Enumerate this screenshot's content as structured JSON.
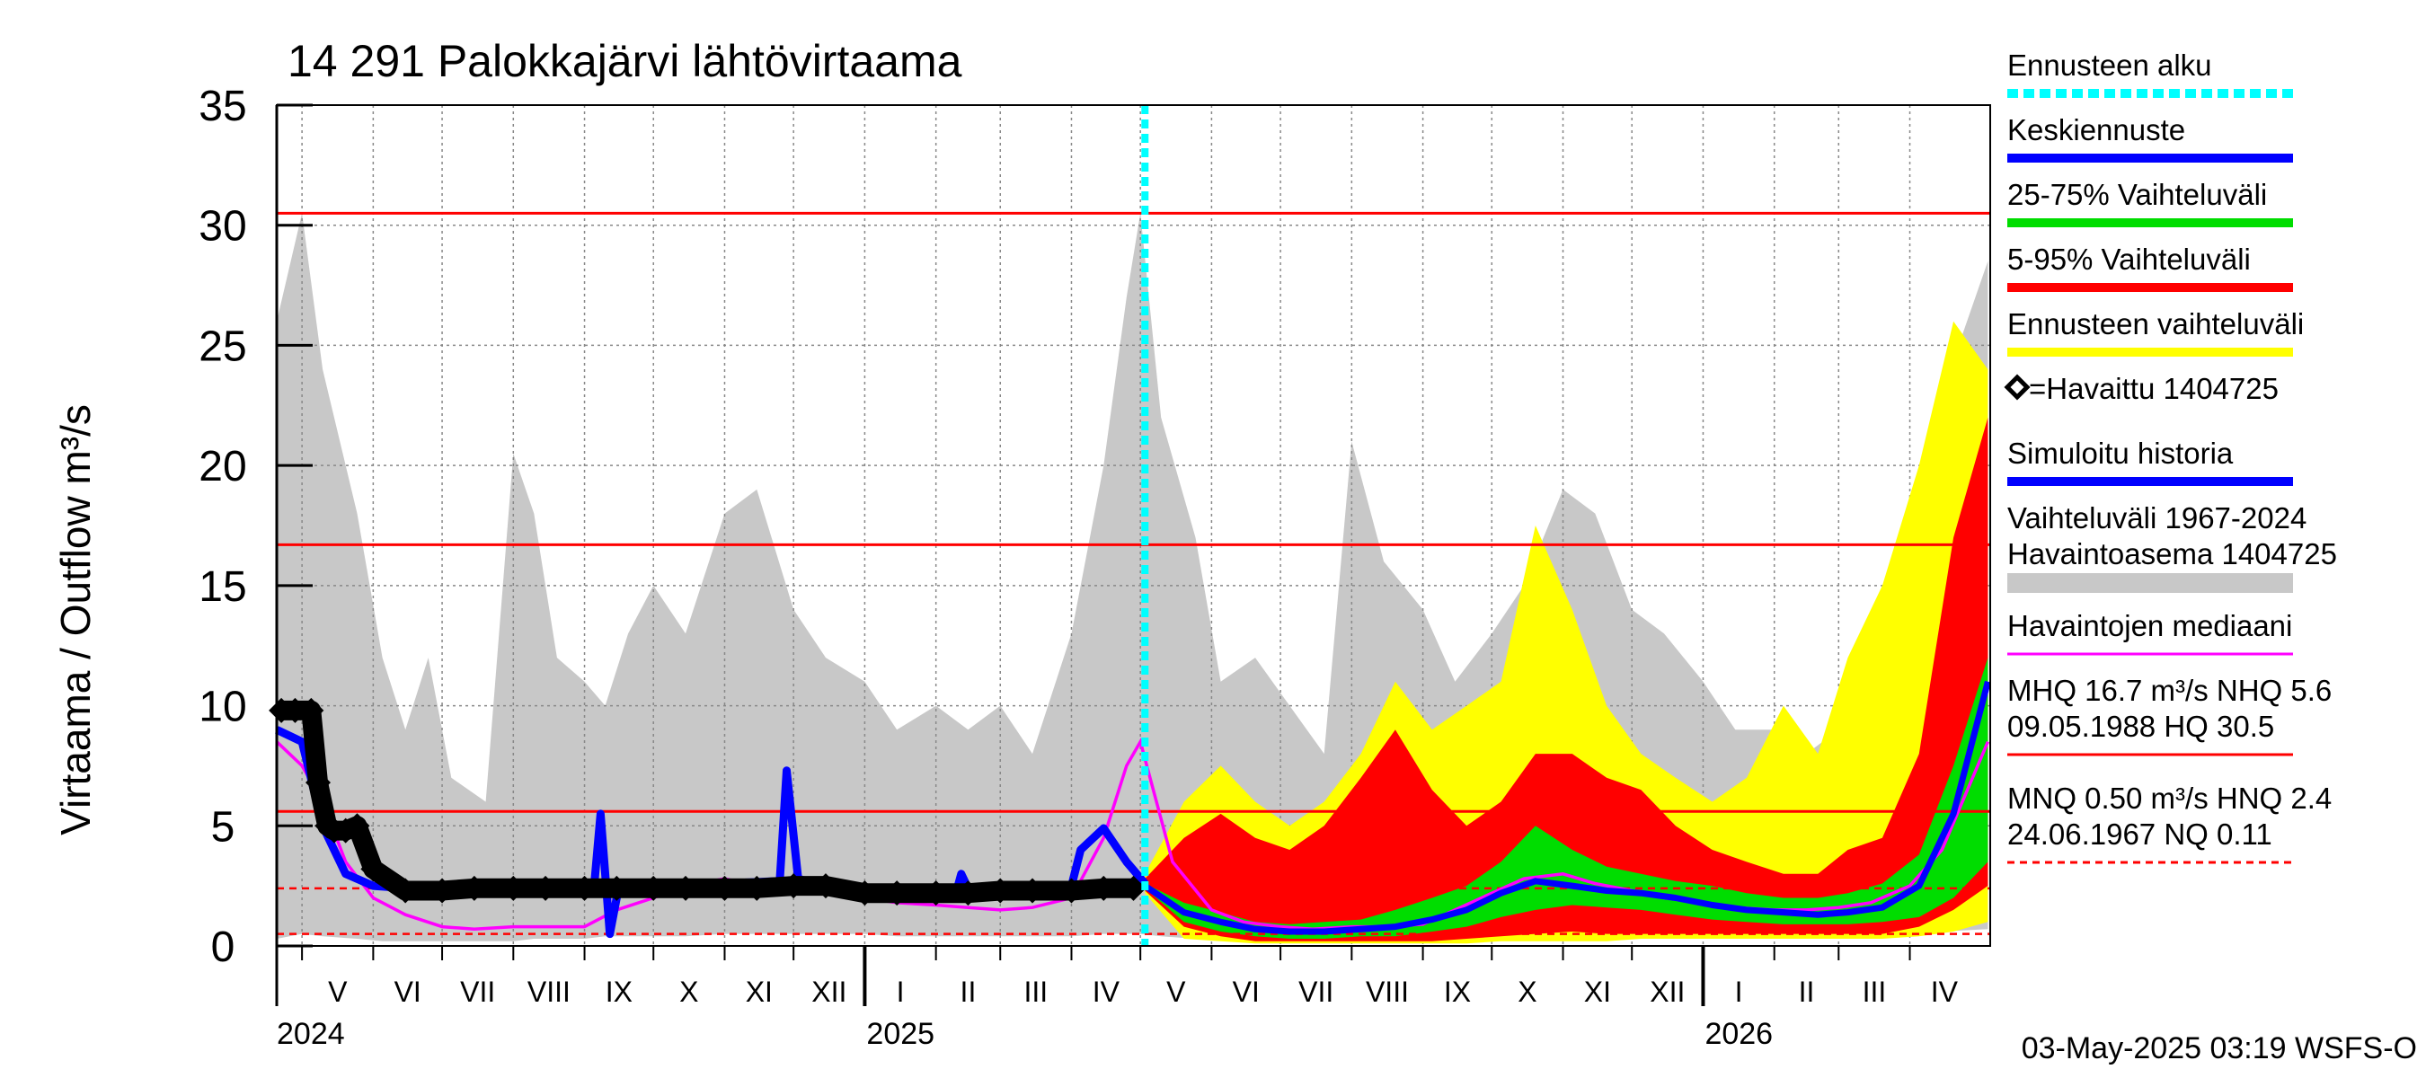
{
  "chart_data": {
    "type": "area",
    "title": "14 291 Palokkajärvi lähtövirtaama",
    "ylabel": "Virtaama / Outflow    m³/s",
    "ylim": [
      0,
      35
    ],
    "yticks": [
      0,
      5,
      10,
      15,
      20,
      25,
      30,
      35
    ],
    "xlim": [
      "2024-04-20",
      "2026-05-06"
    ],
    "grid": true,
    "legend_position": "right",
    "forecast_start": "2025-05-03",
    "timestamp": "03-May-2025 03:19 WSFS-O",
    "months": [
      {
        "label": "V",
        "start": "2024-05-01",
        "end": "2024-06-01"
      },
      {
        "label": "VI",
        "start": "2024-06-01",
        "end": "2024-07-01"
      },
      {
        "label": "VII",
        "start": "2024-07-01",
        "end": "2024-08-01"
      },
      {
        "label": "VIII",
        "start": "2024-08-01",
        "end": "2024-09-01"
      },
      {
        "label": "IX",
        "start": "2024-09-01",
        "end": "2024-10-01"
      },
      {
        "label": "X",
        "start": "2024-10-01",
        "end": "2024-11-01"
      },
      {
        "label": "XI",
        "start": "2024-11-01",
        "end": "2024-12-01"
      },
      {
        "label": "XII",
        "start": "2024-12-01",
        "end": "2025-01-01"
      },
      {
        "label": "I",
        "start": "2025-01-01",
        "end": "2025-02-01"
      },
      {
        "label": "II",
        "start": "2025-02-01",
        "end": "2025-03-01"
      },
      {
        "label": "III",
        "start": "2025-03-01",
        "end": "2025-04-01"
      },
      {
        "label": "IV",
        "start": "2025-04-01",
        "end": "2025-05-01"
      },
      {
        "label": "V",
        "start": "2025-05-01",
        "end": "2025-06-01"
      },
      {
        "label": "VI",
        "start": "2025-06-01",
        "end": "2025-07-01"
      },
      {
        "label": "VII",
        "start": "2025-07-01",
        "end": "2025-08-01"
      },
      {
        "label": "VIII",
        "start": "2025-08-01",
        "end": "2025-09-01"
      },
      {
        "label": "IX",
        "start": "2025-09-01",
        "end": "2025-10-01"
      },
      {
        "label": "X",
        "start": "2025-10-01",
        "end": "2025-11-01"
      },
      {
        "label": "XI",
        "start": "2025-11-01",
        "end": "2025-12-01"
      },
      {
        "label": "XII",
        "start": "2025-12-01",
        "end": "2026-01-01"
      },
      {
        "label": "I",
        "start": "2026-01-01",
        "end": "2026-02-01"
      },
      {
        "label": "II",
        "start": "2026-02-01",
        "end": "2026-03-01"
      },
      {
        "label": "III",
        "start": "2026-03-01",
        "end": "2026-04-01"
      },
      {
        "label": "IV",
        "start": "2026-04-01",
        "end": "2026-05-01"
      }
    ],
    "years": [
      {
        "label": "2024",
        "date": "2024-04-20"
      },
      {
        "label": "2025",
        "date": "2025-01-01"
      },
      {
        "label": "2026",
        "date": "2026-01-01"
      }
    ],
    "reference_lines": [
      {
        "name": "HQ",
        "value": 30.5,
        "style": "solid"
      },
      {
        "name": "MHQ",
        "value": 16.7,
        "style": "solid"
      },
      {
        "name": "NHQ",
        "value": 5.6,
        "style": "solid"
      },
      {
        "name": "HNQ",
        "value": 2.4,
        "style": "dashed"
      },
      {
        "name": "MNQ",
        "value": 0.5,
        "style": "dashed"
      }
    ],
    "series": [
      {
        "name": "Vaihteluväli 1967-2024",
        "role": "historical_range",
        "color": "#c8c8c8",
        "x": [
          "2024-04-20",
          "2024-05-01",
          "2024-05-10",
          "2024-05-25",
          "2024-06-05",
          "2024-06-15",
          "2024-06-25",
          "2024-07-05",
          "2024-07-20",
          "2024-08-01",
          "2024-08-10",
          "2024-08-20",
          "2024-09-01",
          "2024-09-10",
          "2024-09-20",
          "2024-10-01",
          "2024-10-15",
          "2024-11-01",
          "2024-11-15",
          "2024-12-01",
          "2024-12-15",
          "2025-01-01",
          "2025-01-15",
          "2025-02-01",
          "2025-02-15",
          "2025-03-01",
          "2025-03-15",
          "2025-04-01",
          "2025-04-15",
          "2025-04-25",
          "2025-05-01",
          "2025-05-10",
          "2025-05-25",
          "2025-06-05",
          "2025-06-20",
          "2025-07-05",
          "2025-07-20",
          "2025-08-01",
          "2025-08-15",
          "2025-09-01",
          "2025-09-15",
          "2025-10-01",
          "2025-10-15",
          "2025-11-01",
          "2025-11-15",
          "2025-12-01",
          "2025-12-15",
          "2026-01-01",
          "2026-01-15",
          "2026-02-01",
          "2026-02-15",
          "2026-03-01",
          "2026-03-15",
          "2026-04-01",
          "2026-04-15",
          "2026-05-05"
        ],
        "upper": [
          26,
          30.5,
          24,
          18,
          12,
          9,
          12,
          7,
          6,
          20.5,
          18,
          12,
          11,
          10,
          13,
          15,
          13,
          18,
          19,
          14,
          12,
          11,
          9,
          10,
          9,
          10,
          8,
          13,
          20,
          27,
          30.5,
          22,
          17,
          11,
          12,
          10,
          8,
          21,
          16,
          14,
          11,
          13,
          15,
          19,
          18,
          14,
          13,
          11,
          9,
          9,
          8,
          9,
          10,
          16,
          23,
          28.5
        ],
        "lower": [
          0.3,
          0.5,
          0.4,
          0.3,
          0.2,
          0.2,
          0.2,
          0.2,
          0.2,
          0.2,
          0.3,
          0.3,
          0.3,
          0.4,
          0.4,
          0.4,
          0.4,
          0.5,
          0.5,
          0.5,
          0.5,
          0.5,
          0.4,
          0.4,
          0.4,
          0.4,
          0.4,
          0.4,
          0.5,
          0.5,
          0.5,
          0.4,
          0.3,
          0.3,
          0.2,
          0.2,
          0.2,
          0.2,
          0.2,
          0.3,
          0.3,
          0.3,
          0.4,
          0.4,
          0.4,
          0.4,
          0.4,
          0.4,
          0.4,
          0.4,
          0.4,
          0.4,
          0.4,
          0.5,
          0.6,
          0.7
        ]
      },
      {
        "name": "Ennusteen vaihteluväli",
        "role": "forecast_range",
        "color": "#ffff00",
        "x": [
          "2025-05-03",
          "2025-05-20",
          "2025-06-05",
          "2025-06-20",
          "2025-07-05",
          "2025-07-20",
          "2025-08-05",
          "2025-08-20",
          "2025-09-05",
          "2025-09-20",
          "2025-10-05",
          "2025-10-20",
          "2025-11-05",
          "2025-11-20",
          "2025-12-05",
          "2025-12-20",
          "2026-01-05",
          "2026-01-20",
          "2026-02-05",
          "2026-02-20",
          "2026-03-05",
          "2026-03-20",
          "2026-04-05",
          "2026-04-20",
          "2026-05-05"
        ],
        "upper": [
          3,
          6,
          7.5,
          6,
          5,
          6,
          8,
          11,
          9,
          10,
          11,
          17.5,
          14,
          10,
          8,
          7,
          6,
          7,
          10,
          8,
          12,
          15,
          20,
          26,
          24
        ],
        "lower": [
          2.2,
          0.3,
          0.2,
          0.1,
          0.1,
          0.1,
          0.1,
          0.1,
          0.1,
          0.1,
          0.2,
          0.2,
          0.2,
          0.2,
          0.3,
          0.3,
          0.3,
          0.3,
          0.3,
          0.3,
          0.3,
          0.3,
          0.4,
          0.6,
          1.0
        ]
      },
      {
        "name": "5-95% Vaihteluväli",
        "role": "band_5_95",
        "color": "#ff0000",
        "x": [
          "2025-05-03",
          "2025-05-20",
          "2025-06-05",
          "2025-06-20",
          "2025-07-05",
          "2025-07-20",
          "2025-08-05",
          "2025-08-20",
          "2025-09-05",
          "2025-09-20",
          "2025-10-05",
          "2025-10-20",
          "2025-11-05",
          "2025-11-20",
          "2025-12-05",
          "2025-12-20",
          "2026-01-05",
          "2026-01-20",
          "2026-02-05",
          "2026-02-20",
          "2026-03-05",
          "2026-03-20",
          "2026-04-05",
          "2026-04-20",
          "2026-05-05"
        ],
        "upper": [
          2.8,
          4.5,
          5.5,
          4.5,
          4,
          5,
          7,
          9,
          6.5,
          5,
          6,
          8,
          8,
          7,
          6.5,
          5,
          4,
          3.5,
          3,
          3,
          4,
          4.5,
          8,
          17,
          22
        ],
        "lower": [
          2.3,
          0.8,
          0.4,
          0.2,
          0.2,
          0.2,
          0.2,
          0.2,
          0.2,
          0.3,
          0.4,
          0.5,
          0.6,
          0.5,
          0.5,
          0.5,
          0.5,
          0.5,
          0.5,
          0.5,
          0.5,
          0.5,
          0.8,
          1.5,
          2.5
        ]
      },
      {
        "name": "25-75% Vaihteluväli",
        "role": "band_25_75",
        "color": "#00dd00",
        "x": [
          "2025-05-03",
          "2025-05-20",
          "2025-06-05",
          "2025-06-20",
          "2025-07-05",
          "2025-07-20",
          "2025-08-05",
          "2025-08-20",
          "2025-09-05",
          "2025-09-20",
          "2025-10-05",
          "2025-10-20",
          "2025-11-05",
          "2025-11-20",
          "2025-12-05",
          "2025-12-20",
          "2026-01-05",
          "2026-01-20",
          "2026-02-05",
          "2026-02-20",
          "2026-03-05",
          "2026-03-20",
          "2026-04-05",
          "2026-04-20",
          "2026-05-05"
        ],
        "upper": [
          2.6,
          1.8,
          1.4,
          1.0,
          0.9,
          1.0,
          1.1,
          1.5,
          2.0,
          2.5,
          3.5,
          5.0,
          4.0,
          3.3,
          3.0,
          2.7,
          2.5,
          2.2,
          2.0,
          2.0,
          2.2,
          2.6,
          3.8,
          7.5,
          12.0
        ],
        "lower": [
          2.4,
          1.0,
          0.6,
          0.4,
          0.3,
          0.3,
          0.4,
          0.4,
          0.6,
          0.8,
          1.2,
          1.5,
          1.7,
          1.6,
          1.5,
          1.3,
          1.1,
          1.0,
          0.9,
          0.9,
          0.9,
          1.0,
          1.2,
          2.0,
          3.5
        ]
      },
      {
        "name": "Keskiennuste",
        "role": "median_forecast",
        "color": "#0000ff",
        "x": [
          "2025-05-03",
          "2025-05-20",
          "2025-06-05",
          "2025-06-20",
          "2025-07-05",
          "2025-07-20",
          "2025-08-05",
          "2025-08-20",
          "2025-09-05",
          "2025-09-20",
          "2025-10-05",
          "2025-10-20",
          "2025-11-05",
          "2025-11-20",
          "2025-12-05",
          "2025-12-20",
          "2026-01-05",
          "2026-01-20",
          "2026-02-05",
          "2026-02-20",
          "2026-03-05",
          "2026-03-20",
          "2026-04-05",
          "2026-04-20",
          "2026-05-05"
        ],
        "values": [
          2.5,
          1.4,
          1.0,
          0.7,
          0.6,
          0.6,
          0.7,
          0.8,
          1.1,
          1.5,
          2.2,
          2.7,
          2.5,
          2.3,
          2.2,
          2.0,
          1.7,
          1.5,
          1.4,
          1.3,
          1.4,
          1.6,
          2.5,
          5.5,
          11.0
        ]
      },
      {
        "name": "Havaintojen mediaani",
        "role": "observed_median",
        "color": "#ff00ff",
        "x": [
          "2024-04-20",
          "2024-05-01",
          "2024-05-10",
          "2024-05-20",
          "2024-06-01",
          "2024-06-15",
          "2024-07-01",
          "2024-07-15",
          "2024-08-01",
          "2024-08-15",
          "2024-09-01",
          "2024-09-15",
          "2024-10-01",
          "2024-10-15",
          "2024-11-01",
          "2024-11-15",
          "2024-12-01",
          "2024-12-15",
          "2025-01-01",
          "2025-01-15",
          "2025-02-01",
          "2025-02-15",
          "2025-03-01",
          "2025-03-15",
          "2025-04-01",
          "2025-04-15",
          "2025-04-25",
          "2025-05-01",
          "2025-05-15",
          "2025-06-01",
          "2025-06-15",
          "2025-07-01",
          "2025-07-15",
          "2025-08-01",
          "2025-08-15",
          "2025-09-01",
          "2025-09-15",
          "2025-10-01",
          "2025-10-15",
          "2025-11-01",
          "2025-11-15",
          "2025-12-01",
          "2025-12-15",
          "2026-01-01",
          "2026-01-15",
          "2026-02-01",
          "2026-02-15",
          "2026-03-01",
          "2026-03-15",
          "2026-04-01",
          "2026-04-15",
          "2026-05-05"
        ],
        "values": [
          8.5,
          7.5,
          6.0,
          3.5,
          2.0,
          1.3,
          0.8,
          0.7,
          0.8,
          0.8,
          0.8,
          1.5,
          2.0,
          2.5,
          2.8,
          2.5,
          2.6,
          2.4,
          2.0,
          1.8,
          1.7,
          1.6,
          1.5,
          1.6,
          2.0,
          4.5,
          7.5,
          8.5,
          3.5,
          1.5,
          1.0,
          0.8,
          0.7,
          0.8,
          0.8,
          0.9,
          1.5,
          2.2,
          2.8,
          3.0,
          2.6,
          2.3,
          2.0,
          1.8,
          1.6,
          1.5,
          1.5,
          1.6,
          1.8,
          2.5,
          4.0,
          8.5
        ]
      },
      {
        "name": "Simuloitu historia",
        "role": "simulated_history",
        "color": "#0000ff",
        "x": [
          "2024-04-20",
          "2024-05-01",
          "2024-05-10",
          "2024-05-20",
          "2024-06-01",
          "2024-07-01",
          "2024-08-01",
          "2024-09-05",
          "2024-09-08",
          "2024-09-12",
          "2024-09-16",
          "2024-10-01",
          "2024-11-01",
          "2024-11-25",
          "2024-11-28",
          "2024-12-03",
          "2024-12-10",
          "2025-01-01",
          "2025-02-10",
          "2025-02-12",
          "2025-02-15",
          "2025-03-01",
          "2025-04-01",
          "2025-04-05",
          "2025-04-15",
          "2025-04-25",
          "2025-05-03"
        ],
        "values": [
          9.0,
          8.5,
          5.0,
          3.0,
          2.5,
          2.3,
          2.3,
          2.3,
          5.5,
          0.5,
          2.5,
          2.5,
          2.6,
          2.7,
          7.3,
          2.8,
          2.6,
          2.4,
          2.3,
          3.0,
          2.4,
          2.4,
          2.5,
          4.0,
          4.9,
          3.5,
          2.6
        ]
      },
      {
        "name": "=Havaittu 1404725",
        "role": "observed",
        "color": "#000000",
        "x": [
          "2024-04-22",
          "2024-04-28",
          "2024-05-05",
          "2024-05-08",
          "2024-05-12",
          "2024-05-15",
          "2024-05-20",
          "2024-05-25",
          "2024-06-01",
          "2024-06-15",
          "2024-07-01",
          "2024-07-15",
          "2024-08-01",
          "2024-08-15",
          "2024-09-01",
          "2024-09-15",
          "2024-10-01",
          "2024-10-15",
          "2024-11-01",
          "2024-11-15",
          "2024-12-01",
          "2024-12-15",
          "2025-01-01",
          "2025-01-15",
          "2025-02-01",
          "2025-02-15",
          "2025-03-01",
          "2025-03-15",
          "2025-04-01",
          "2025-04-15",
          "2025-04-28"
        ],
        "values": [
          9.8,
          9.8,
          9.8,
          6.8,
          5.0,
          4.8,
          4.8,
          5.0,
          3.2,
          2.3,
          2.3,
          2.4,
          2.4,
          2.4,
          2.4,
          2.4,
          2.4,
          2.4,
          2.4,
          2.4,
          2.5,
          2.5,
          2.2,
          2.2,
          2.2,
          2.2,
          2.3,
          2.3,
          2.3,
          2.4,
          2.4
        ]
      }
    ]
  },
  "legend": {
    "items": [
      {
        "label": "Ennusteen alku",
        "kind": "line-dashed",
        "color": "#00ffff"
      },
      {
        "label": "Keskiennuste",
        "kind": "line",
        "color": "#0000ff"
      },
      {
        "label": "25-75% Vaihteluväli",
        "kind": "line",
        "color": "#00dd00"
      },
      {
        "label": "5-95% Vaihteluväli",
        "kind": "line",
        "color": "#ff0000"
      },
      {
        "label": "Ennusteen vaihteluväli",
        "kind": "line",
        "color": "#ffff00"
      },
      {
        "label": "=Havaittu 1404725",
        "kind": "diamond",
        "color": "#000000"
      },
      {
        "label": "Simuloitu historia",
        "kind": "line",
        "color": "#0000ff"
      },
      {
        "label": "Vaihteluväli 1967-2024",
        "label2": " Havaintoasema 1404725",
        "kind": "band",
        "color": "#c8c8c8"
      },
      {
        "label": "Havaintojen mediaani",
        "kind": "line-thin",
        "color": "#ff00ff"
      },
      {
        "label": "MHQ 16.7 m³/s NHQ  5.6",
        "label2": "09.05.1988 HQ 30.5",
        "kind": "line-thin",
        "color": "#ff0000"
      },
      {
        "label": "MNQ 0.50 m³/s HNQ  2.4",
        "label2": "24.06.1967 NQ 0.11",
        "kind": "line-dashed-thin",
        "color": "#ff0000"
      }
    ]
  }
}
